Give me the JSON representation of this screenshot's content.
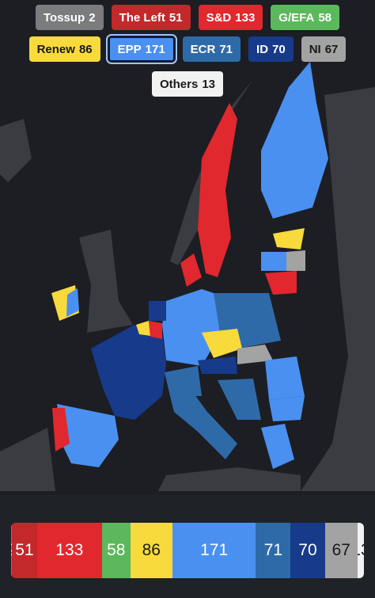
{
  "parties": [
    {
      "name": "Tossup",
      "seats": 2,
      "color": "#7b7c7e",
      "text_color": "#ffffff"
    },
    {
      "name": "The Left",
      "seats": 51,
      "color": "#c3282b",
      "text_color": "#ffffff"
    },
    {
      "name": "S&D",
      "seats": 133,
      "color": "#e0282e",
      "text_color": "#ffffff"
    },
    {
      "name": "G/EFA",
      "seats": 58,
      "color": "#5cb85c",
      "text_color": "#ffffff"
    },
    {
      "name": "Renew",
      "seats": 86,
      "color": "#f8da3c",
      "text_color": "#1a1a1a"
    },
    {
      "name": "EPP",
      "seats": 171,
      "color": "#4a90f0",
      "text_color": "#ffffff"
    },
    {
      "name": "ECR",
      "seats": 71,
      "color": "#2f6aa8",
      "text_color": "#ffffff"
    },
    {
      "name": "ID",
      "seats": 70,
      "color": "#173a8a",
      "text_color": "#ffffff"
    },
    {
      "name": "NI",
      "seats": 67,
      "color": "#a3a3a3",
      "text_color": "#1a1a1a"
    },
    {
      "name": "Others",
      "seats": 13,
      "color": "#f2f2f2",
      "text_color": "#1a1a1a"
    }
  ],
  "selected_index": 5
}
